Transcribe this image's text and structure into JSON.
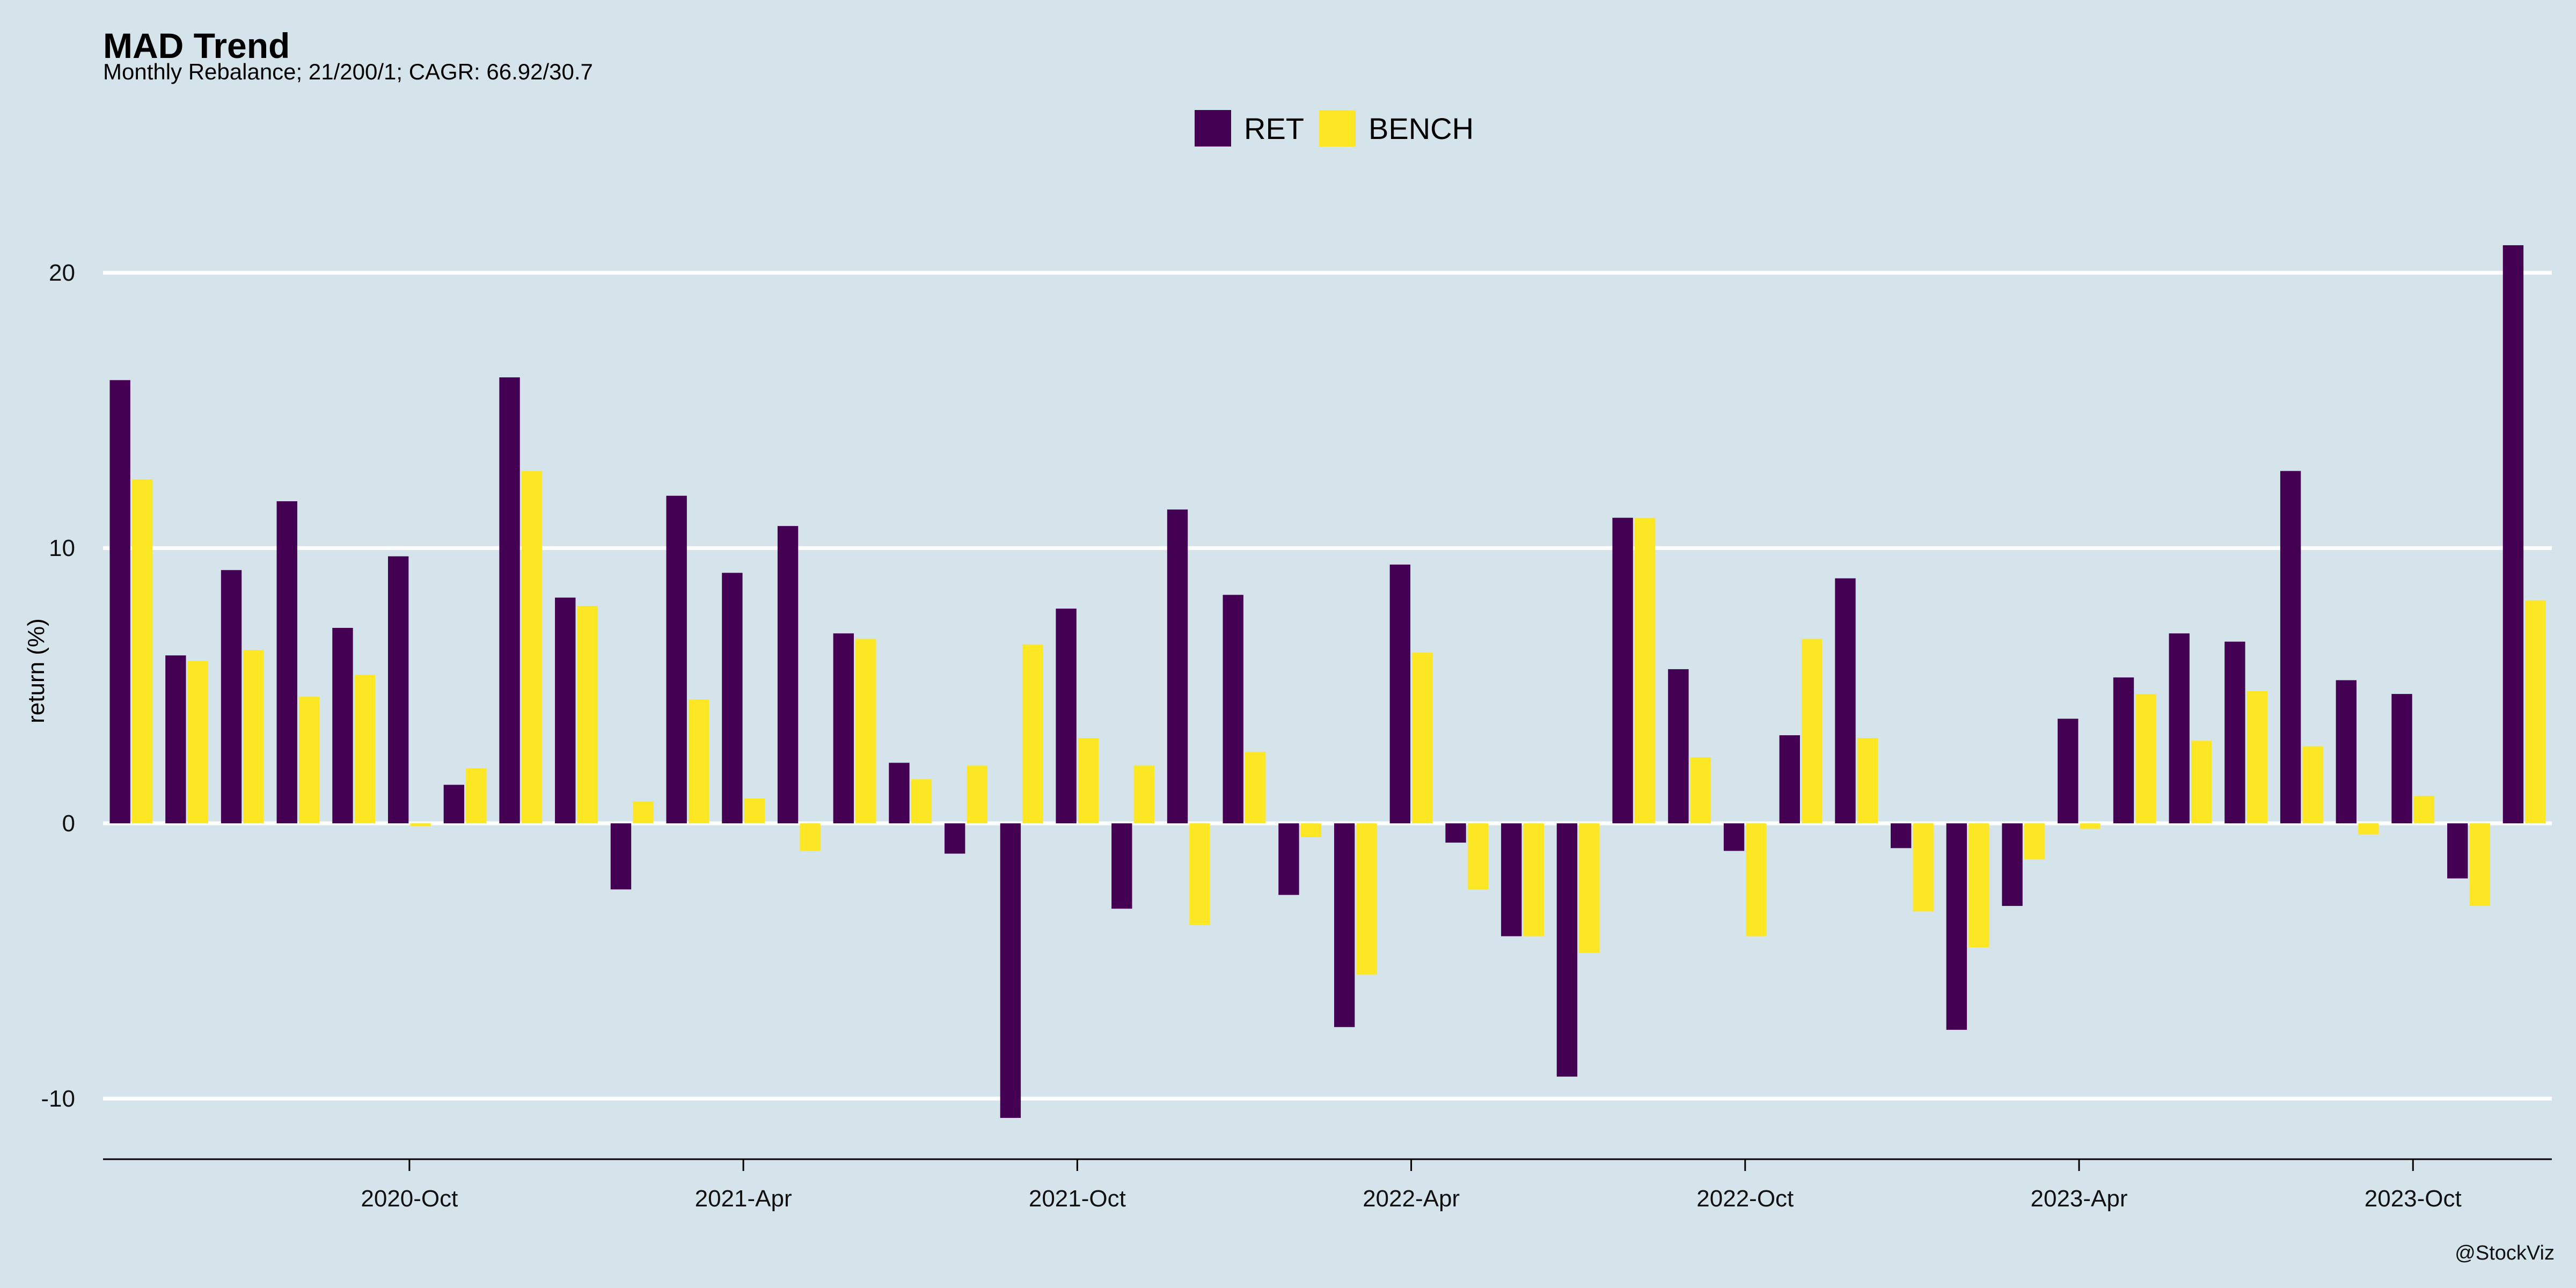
{
  "chart_data": {
    "type": "bar",
    "title": "MAD Trend",
    "subtitle": "Monthly Rebalance; 21/200/1; CAGR: 66.92/30.7",
    "ylabel": "return (%)",
    "xlabel": "",
    "ylim": [
      -12.2,
      22.5
    ],
    "yticks": [
      -10,
      0,
      10,
      20
    ],
    "x_tick_labels": [
      "2020-Oct",
      "2021-Apr",
      "2021-Oct",
      "2022-Apr",
      "2022-Oct",
      "2023-Apr",
      "2023-Oct"
    ],
    "x_tick_months": [
      "2020-10",
      "2021-04",
      "2021-10",
      "2022-04",
      "2022-10",
      "2023-04",
      "2023-10"
    ],
    "months": [
      "2020-05",
      "2020-06",
      "2020-07",
      "2020-08",
      "2020-09",
      "2020-10",
      "2020-11",
      "2020-12",
      "2021-01",
      "2021-02",
      "2021-03",
      "2021-04",
      "2021-05",
      "2021-06",
      "2021-07",
      "2021-08",
      "2021-09",
      "2021-10",
      "2021-11",
      "2021-12",
      "2022-01",
      "2022-02",
      "2022-03",
      "2022-04",
      "2022-05",
      "2022-06",
      "2022-07",
      "2022-08",
      "2022-09",
      "2022-10",
      "2022-11",
      "2022-12",
      "2023-01",
      "2023-02",
      "2023-03",
      "2023-04",
      "2023-05",
      "2023-06",
      "2023-07",
      "2023-08",
      "2023-09",
      "2023-10",
      "2023-11",
      "2023-12"
    ],
    "legend_position": "top-center",
    "grid": true,
    "series": [
      {
        "name": "RET",
        "color": "#440154",
        "values": [
          16.1,
          6.1,
          9.2,
          11.7,
          7.1,
          9.7,
          1.4,
          16.2,
          8.2,
          -2.4,
          11.9,
          9.1,
          10.8,
          6.9,
          2.2,
          -1.1,
          -10.7,
          7.8,
          -3.1,
          11.4,
          8.3,
          -2.6,
          -7.4,
          9.4,
          -0.7,
          -4.1,
          -9.2,
          11.1,
          5.6,
          -1.0,
          3.2,
          8.9,
          -0.9,
          -7.5,
          -3.0,
          3.8,
          5.3,
          6.9,
          6.6,
          12.8,
          5.2,
          4.7,
          -2.0,
          21.0
        ]
      },
      {
        "name": "BENCH",
        "color": "#fde725",
        "values": [
          12.5,
          5.9,
          6.3,
          4.6,
          5.4,
          -0.1,
          2.0,
          12.8,
          7.9,
          0.8,
          4.5,
          0.9,
          -1.0,
          6.7,
          1.6,
          2.1,
          6.5,
          3.1,
          2.1,
          -3.7,
          2.6,
          -0.5,
          -5.5,
          6.2,
          -2.4,
          -4.1,
          -4.7,
          11.1,
          2.4,
          -4.1,
          6.7,
          3.1,
          -3.2,
          -4.5,
          -1.3,
          -0.2,
          4.7,
          3.0,
          4.8,
          2.8,
          -0.4,
          1.0,
          -3.0,
          8.1
        ]
      }
    ]
  },
  "credit": "@StockViz"
}
